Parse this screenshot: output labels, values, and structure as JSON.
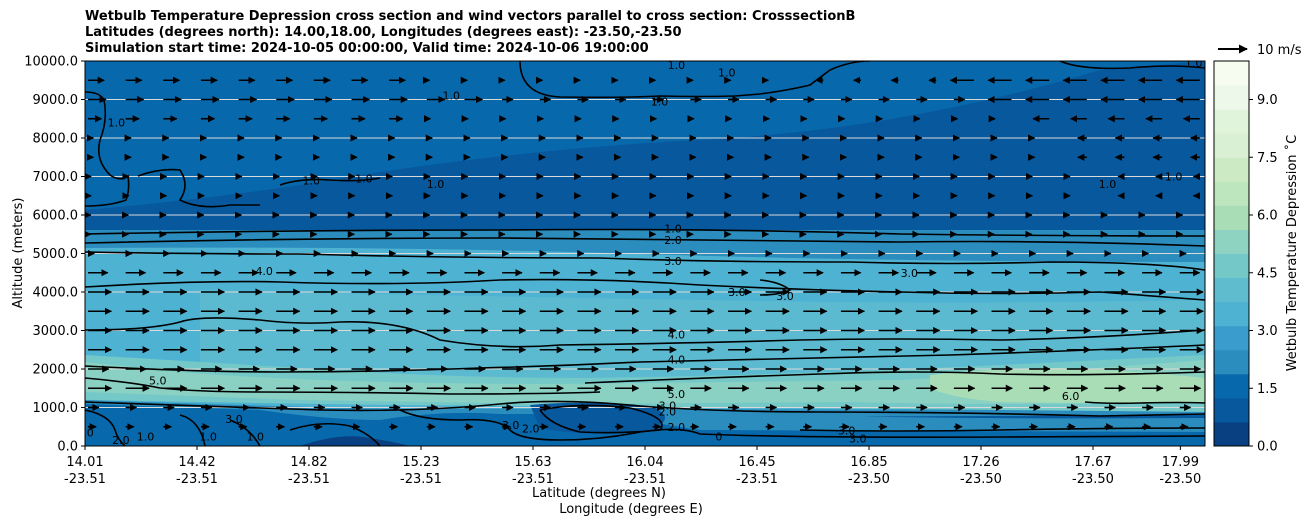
{
  "chart_data": {
    "type": "contourf",
    "title_lines": [
      "Wetbulb Temperature Depression cross section and wind vectors parallel to cross section: CrosssectionB",
      "Latitudes (degrees north): 14.00,18.00, Longitudes (degrees east): -23.50,-23.50",
      "Simulation start time: 2024-10-05 00:00:00, Valid time: 2024-10-06 19:00:00"
    ],
    "ylabel": "Altitude (meters)",
    "xlabel_lat": "Latitude (degrees N)",
    "xlabel_lon": "Longitude (degrees E)",
    "ylim": [
      0,
      10000
    ],
    "yticks": [
      "0.0",
      "1000.0",
      "2000.0",
      "3000.0",
      "4000.0",
      "5000.0",
      "6000.0",
      "7000.0",
      "8000.0",
      "9000.0",
      "10000.0"
    ],
    "xticks": [
      {
        "lat": "14.01",
        "lon": "-23.51",
        "frac": 0.0
      },
      {
        "lat": "14.42",
        "lon": "-23.51",
        "frac": 0.1
      },
      {
        "lat": "14.82",
        "lon": "-23.51",
        "frac": 0.2
      },
      {
        "lat": "15.23",
        "lon": "-23.51",
        "frac": 0.3
      },
      {
        "lat": "15.63",
        "lon": "-23.51",
        "frac": 0.4
      },
      {
        "lat": "16.04",
        "lon": "-23.51",
        "frac": 0.5
      },
      {
        "lat": "16.45",
        "lon": "-23.51",
        "frac": 0.6
      },
      {
        "lat": "16.85",
        "lon": "-23.50",
        "frac": 0.7
      },
      {
        "lat": "17.26",
        "lon": "-23.50",
        "frac": 0.8
      },
      {
        "lat": "17.67",
        "lon": "-23.50",
        "frac": 0.9
      },
      {
        "lat": "17.99",
        "lon": "-23.50",
        "frac": 0.978
      }
    ],
    "colorbar": {
      "label": "Wetbulb Temperature Depression ˚C",
      "ticks": [
        "0.0",
        "1.5",
        "3.0",
        "4.5",
        "6.0",
        "7.5",
        "9.0"
      ],
      "range": [
        0,
        10
      ],
      "colors": [
        "#084081",
        "#08589e",
        "#0868ac",
        "#2b8cbe",
        "#3a9ccc",
        "#4eb3d3",
        "#5fbccf",
        "#74c8c8",
        "#8ed2c2",
        "#a8ddb5",
        "#bde5be",
        "#ccebc5",
        "#daf0d4",
        "#e0f3db",
        "#eef8ea",
        "#f7fcf0"
      ]
    },
    "quiver_key": "10 m/s",
    "contour_labels": [
      {
        "v": "1.0",
        "x": 0.528,
        "y": 9900
      },
      {
        "v": "1.0",
        "x": 0.573,
        "y": 9700
      },
      {
        "v": "1.0",
        "x": 0.513,
        "y": 8950
      },
      {
        "v": "1.0",
        "x": 0.028,
        "y": 8400
      },
      {
        "v": "1.0",
        "x": 0.327,
        "y": 9100
      },
      {
        "v": "1.0",
        "x": 0.202,
        "y": 6900
      },
      {
        "v": "1.0",
        "x": 0.249,
        "y": 6950
      },
      {
        "v": "1.0",
        "x": 0.313,
        "y": 6800
      },
      {
        "v": "1.0",
        "x": 0.99,
        "y": 9950
      },
      {
        "v": "1.0",
        "x": 0.972,
        "y": 7000
      },
      {
        "v": "1.0",
        "x": 0.913,
        "y": 6800
      },
      {
        "v": "1.0",
        "x": 0.525,
        "y": 5650
      },
      {
        "v": "2.0",
        "x": 0.525,
        "y": 5350
      },
      {
        "v": "3.0",
        "x": 0.525,
        "y": 4800
      },
      {
        "v": "4.0",
        "x": 0.16,
        "y": 4550
      },
      {
        "v": "3.0",
        "x": 0.736,
        "y": 4500
      },
      {
        "v": "3.0",
        "x": 0.582,
        "y": 4000
      },
      {
        "v": "3.0",
        "x": 0.625,
        "y": 3900
      },
      {
        "v": "4.0",
        "x": 0.528,
        "y": 2900
      },
      {
        "v": "4.0",
        "x": 0.528,
        "y": 2250
      },
      {
        "v": "5.0",
        "x": 0.065,
        "y": 1700
      },
      {
        "v": "5.0",
        "x": 0.528,
        "y": 1350
      },
      {
        "v": "6.0",
        "x": 0.88,
        "y": 1300
      },
      {
        "v": "2.0",
        "x": 0.52,
        "y": 900
      },
      {
        "v": "3.0",
        "x": 0.52,
        "y": 1050
      },
      {
        "v": "3.0",
        "x": 0.133,
        "y": 700
      },
      {
        "v": "2.0",
        "x": 0.398,
        "y": 450
      },
      {
        "v": "3.0",
        "x": 0.38,
        "y": 550
      },
      {
        "v": "2.0",
        "x": 0.528,
        "y": 500
      },
      {
        "v": "1.0",
        "x": 0.152,
        "y": 250
      },
      {
        "v": "1.0",
        "x": 0.11,
        "y": 250
      },
      {
        "v": "1.0",
        "x": 0.054,
        "y": 250
      },
      {
        "v": "2.0",
        "x": 0.032,
        "y": 150
      },
      {
        "v": "1.0",
        "x": 0.0,
        "y": 350
      },
      {
        "v": "3.0",
        "x": 0.68,
        "y": 400
      },
      {
        "v": "3.0",
        "x": 0.69,
        "y": 200
      },
      {
        "v": "0",
        "x": 0.566,
        "y": 250
      }
    ]
  }
}
